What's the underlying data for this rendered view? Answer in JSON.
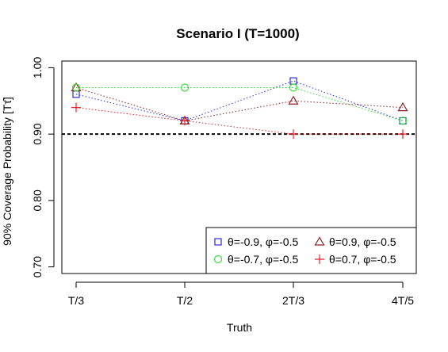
{
  "chart_data": {
    "type": "line",
    "title": "Scenario I (T=1000)",
    "xlabel": "Truth",
    "ylabel": "90% Coverage Probability [Tτ̂]",
    "categories": [
      "T/3",
      "T/2",
      "2T/3",
      "4T/5"
    ],
    "ylim": [
      0.69,
      1.01
    ],
    "yticks": [
      0.7,
      0.8,
      0.9,
      1.0
    ],
    "ytick_labels": [
      "0.70",
      "0.80",
      "0.90",
      "1.00"
    ],
    "reference_line": {
      "value": 0.9,
      "style": "dashed",
      "color": "#000000"
    },
    "grid": false,
    "legend_position": "bottom-right",
    "series": [
      {
        "name": "θ=-0.9, φ=-0.5",
        "marker": "square",
        "color": "#2b2bd6",
        "values": [
          0.96,
          0.92,
          0.98,
          0.92
        ]
      },
      {
        "name": "θ=0.9, φ=-0.5",
        "marker": "triangle",
        "color": "#8b2323",
        "values": [
          0.97,
          0.92,
          0.95,
          0.94
        ]
      },
      {
        "name": "θ=-0.7, φ=-0.5",
        "marker": "circle",
        "color": "#3ddc3d",
        "values": [
          0.97,
          0.97,
          0.97,
          0.92
        ]
      },
      {
        "name": "θ=0.7, φ=-0.5",
        "marker": "plus",
        "color": "#e8212a",
        "values": [
          0.94,
          0.92,
          0.9,
          0.9
        ]
      }
    ]
  }
}
